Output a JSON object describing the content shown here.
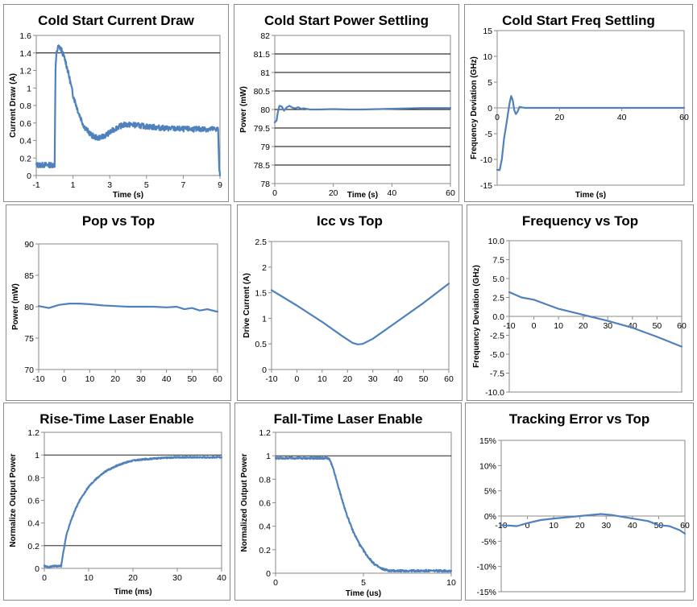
{
  "chart_data": [
    {
      "id": "cold-start-current-draw",
      "type": "line",
      "title": "Cold Start Current Draw",
      "xlabel": "Time (s)",
      "ylabel": "Current Draw (A)",
      "xlim": [
        -1,
        9
      ],
      "ylim": [
        0,
        1.6
      ],
      "xticks": [
        -1,
        1,
        3,
        5,
        7,
        9
      ],
      "yticks": [
        0,
        0.2,
        0.4,
        0.6,
        0.8,
        1,
        1.2,
        1.4,
        1.6
      ],
      "ytick_labels": [
        "0",
        "0.2",
        "0.4",
        "0.6",
        "0.8",
        "1",
        "1.2",
        "1.4",
        "1.6"
      ],
      "grid_y": [
        1.4
      ],
      "noise": 0.03,
      "series": [
        {
          "x": [
            -1,
            0,
            0.02,
            0.05,
            0.1,
            0.2,
            0.3,
            0.4,
            0.6,
            0.8,
            1.0,
            1.3,
            1.6,
            2.0,
            2.3,
            2.6,
            3.0,
            3.4,
            3.8,
            4.2,
            4.6,
            5.0,
            5.5,
            6,
            7,
            8,
            8.9,
            8.95,
            9
          ],
          "y": [
            0.12,
            0.12,
            0.6,
            1.2,
            1.4,
            1.47,
            1.46,
            1.42,
            1.3,
            1.12,
            0.92,
            0.72,
            0.56,
            0.46,
            0.43,
            0.44,
            0.49,
            0.55,
            0.58,
            0.58,
            0.57,
            0.56,
            0.55,
            0.54,
            0.53,
            0.53,
            0.53,
            0.1,
            0
          ]
        }
      ]
    },
    {
      "id": "cold-start-power-settling",
      "type": "line",
      "title": "Cold Start Power Settling",
      "xlabel": "Time (s)",
      "ylabel": "Power (mW)",
      "xlim": [
        0,
        60
      ],
      "ylim": [
        78,
        82
      ],
      "xticks": [
        0,
        20,
        40,
        60
      ],
      "yticks": [
        78,
        78.5,
        79,
        79.5,
        80,
        80.5,
        81,
        81.5,
        82
      ],
      "ytick_labels": [
        "78",
        "78.5",
        "79",
        "79.5",
        "80",
        "80.5",
        "81",
        "81.5",
        "82"
      ],
      "grid_y": [
        78.5,
        79,
        79.5,
        80,
        80.5,
        81,
        81.5
      ],
      "noise": 0,
      "series": [
        {
          "x": [
            0,
            0.6,
            1.0,
            1.6,
            2.4,
            3.2,
            4.0,
            5.0,
            6.0,
            7.0,
            8.0,
            9.0,
            10,
            12,
            15,
            20,
            25,
            30,
            40,
            50,
            60
          ],
          "y": [
            79.65,
            79.7,
            79.9,
            80.1,
            80.08,
            79.97,
            80.05,
            80.1,
            80.05,
            80.03,
            80.06,
            80.02,
            80.03,
            80.0,
            80.0,
            80.01,
            80.0,
            80.0,
            80.02,
            80.04,
            80.04
          ]
        }
      ]
    },
    {
      "id": "cold-start-freq-settling",
      "type": "line",
      "title": "Cold Start Freq Settling",
      "xlabel": "Time (s)",
      "ylabel": "Frequency Deviation (GHz)",
      "xlim": [
        0,
        60
      ],
      "ylim": [
        -15,
        15
      ],
      "xticks": [
        0,
        20,
        40,
        60
      ],
      "yticks": [
        -15,
        -10,
        -5,
        0,
        5,
        10,
        15
      ],
      "ytick_labels": [
        "-15",
        "-10",
        "-5",
        "0",
        "5",
        "10",
        "15"
      ],
      "xaxis_at": 0,
      "grid_y": [],
      "noise": 0,
      "series": [
        {
          "x": [
            0,
            0.8,
            1.5,
            2.2,
            3.0,
            3.5,
            4.0,
            4.5,
            5.0,
            5.5,
            6.0,
            6.5,
            7.2,
            8,
            9,
            10,
            15,
            30,
            45,
            60
          ],
          "y": [
            -12,
            -12.1,
            -10,
            -6,
            -3,
            -1,
            1,
            2.3,
            1.5,
            -0.5,
            -1.2,
            -0.8,
            0.2,
            0.1,
            0,
            0,
            0,
            0,
            0,
            0
          ]
        }
      ]
    },
    {
      "id": "pop-vs-top",
      "type": "line",
      "title": "Pop vs Top",
      "xlabel": "",
      "ylabel": "Power (mW)",
      "xlim": [
        -10,
        60
      ],
      "ylim": [
        70,
        90
      ],
      "xticks": [
        -10,
        0,
        10,
        20,
        30,
        40,
        50,
        60
      ],
      "yticks": [
        70,
        75,
        80,
        85,
        90
      ],
      "ytick_labels": [
        "70",
        "75",
        "80",
        "85",
        "90"
      ],
      "grid_y": [],
      "noise": 0,
      "series": [
        {
          "x": [
            -10,
            -6,
            -2,
            2,
            6,
            10,
            15,
            20,
            25,
            30,
            35,
            40,
            44,
            47,
            50,
            53,
            56,
            59,
            60
          ],
          "y": [
            80.1,
            79.8,
            80.3,
            80.5,
            80.5,
            80.4,
            80.2,
            80.1,
            80.0,
            80.0,
            80.0,
            79.9,
            80.0,
            79.6,
            79.8,
            79.4,
            79.6,
            79.3,
            79.2
          ]
        }
      ]
    },
    {
      "id": "icc-vs-top",
      "type": "line",
      "title": "Icc vs Top",
      "xlabel": "",
      "ylabel": "Drive Current (A)",
      "xlim": [
        -10,
        60
      ],
      "ylim": [
        0,
        2.5
      ],
      "xticks": [
        -10,
        0,
        10,
        20,
        30,
        40,
        50,
        60
      ],
      "yticks": [
        0,
        0.5,
        1,
        1.5,
        2,
        2.5
      ],
      "ytick_labels": [
        "0",
        "0.5",
        "1",
        "1.5",
        "2",
        "2.5"
      ],
      "grid_y": [],
      "noise": 0,
      "series": [
        {
          "x": [
            -10,
            0,
            10,
            18,
            22,
            24,
            26,
            30,
            40,
            50,
            60
          ],
          "y": [
            1.55,
            1.25,
            0.93,
            0.65,
            0.52,
            0.49,
            0.5,
            0.6,
            0.95,
            1.3,
            1.68
          ]
        }
      ]
    },
    {
      "id": "frequency-vs-top",
      "type": "line",
      "title": "Frequency vs Top",
      "xlabel": "",
      "ylabel": "Frequency Deviation (GHz)",
      "xlim": [
        -10,
        60
      ],
      "ylim": [
        -10,
        10
      ],
      "xticks": [
        -10,
        0,
        10,
        20,
        30,
        40,
        50,
        60
      ],
      "yticks": [
        -10,
        -7.5,
        -5,
        -2.5,
        0,
        2.5,
        5,
        7.5,
        10
      ],
      "ytick_labels": [
        "-10.0",
        "-7.5",
        "-5.0",
        "-2.5",
        "0.0",
        "2.5",
        "5.0",
        "7.5",
        "10.0"
      ],
      "xaxis_at": 0,
      "grid_y": [],
      "noise": 0,
      "series": [
        {
          "x": [
            -10,
            -5,
            0,
            5,
            10,
            20,
            30,
            40,
            50,
            60
          ],
          "y": [
            3.2,
            2.5,
            2.2,
            1.6,
            1.0,
            0.2,
            -0.6,
            -1.5,
            -2.7,
            -4.0
          ]
        }
      ]
    },
    {
      "id": "rise-time-laser-enable",
      "type": "line",
      "title": "Rise-Time Laser Enable",
      "xlabel": "Time (ms)",
      "ylabel": "Normalize Output Power",
      "xlim": [
        0,
        40
      ],
      "ylim": [
        0,
        1.2
      ],
      "xticks": [
        0,
        10,
        20,
        30,
        40
      ],
      "yticks": [
        0,
        0.2,
        0.4,
        0.6,
        0.8,
        1,
        1.2
      ],
      "ytick_labels": [
        "0",
        "0.2",
        "0.4",
        "0.6",
        "0.8",
        "1",
        "1.2"
      ],
      "grid_y": [
        0.2,
        1.0
      ],
      "noise": 0.006,
      "series": [
        {
          "x": [
            0,
            1,
            2,
            3,
            3.8,
            4.2,
            5,
            6,
            7,
            8,
            10,
            12,
            14,
            16,
            18,
            20,
            22,
            25,
            30,
            35,
            40
          ],
          "y": [
            0.02,
            0.01,
            0.02,
            0.02,
            0.02,
            0.12,
            0.3,
            0.42,
            0.52,
            0.6,
            0.72,
            0.8,
            0.86,
            0.9,
            0.93,
            0.95,
            0.96,
            0.97,
            0.98,
            0.98,
            0.98
          ]
        }
      ]
    },
    {
      "id": "fall-time-laser-enable",
      "type": "line",
      "title": "Fall-Time Laser Enable",
      "xlabel": "Time (us)",
      "ylabel": "Normalized Output Power",
      "xlim": [
        0,
        10
      ],
      "ylim": [
        0,
        1.2
      ],
      "xticks": [
        0,
        5,
        10
      ],
      "yticks": [
        0,
        0.2,
        0.4,
        0.6,
        0.8,
        1,
        1.2
      ],
      "ytick_labels": [
        "0",
        "0.2",
        "0.4",
        "0.6",
        "0.8",
        "1",
        "1.2"
      ],
      "grid_y": [
        1.0
      ],
      "noise": 0.008,
      "series": [
        {
          "x": [
            0,
            1,
            2,
            3,
            3.1,
            3.3,
            3.6,
            4,
            4.4,
            4.8,
            5.2,
            5.6,
            6,
            6.5,
            7,
            8,
            9,
            10
          ],
          "y": [
            0.98,
            0.98,
            0.98,
            0.98,
            0.96,
            0.88,
            0.72,
            0.52,
            0.36,
            0.24,
            0.15,
            0.08,
            0.04,
            0.02,
            0.02,
            0.02,
            0.02,
            0.02
          ]
        }
      ]
    },
    {
      "id": "tracking-error-vs-top",
      "type": "line",
      "title": "Tracking Error vs Top",
      "xlabel": "",
      "ylabel": "",
      "xlim": [
        -10,
        60
      ],
      "ylim": [
        -15,
        15
      ],
      "xticks": [
        -10,
        0,
        10,
        20,
        30,
        40,
        50,
        60
      ],
      "yticks": [
        -15,
        -10,
        -5,
        0,
        5,
        10,
        15
      ],
      "ytick_labels": [
        "-15%",
        "-10%",
        "-5%",
        "0%",
        "5%",
        "10%",
        "15%"
      ],
      "xaxis_at": 0,
      "grid_y": [],
      "noise": 0,
      "series": [
        {
          "x": [
            -10,
            -4,
            0,
            5,
            10,
            20,
            28,
            32,
            40,
            46,
            50,
            54,
            58,
            60
          ],
          "y": [
            -1.8,
            -2.0,
            -1.4,
            -0.8,
            -0.5,
            0.0,
            0.4,
            0.2,
            -0.5,
            -1.0,
            -1.8,
            -2.0,
            -2.8,
            -3.5
          ]
        }
      ]
    }
  ]
}
